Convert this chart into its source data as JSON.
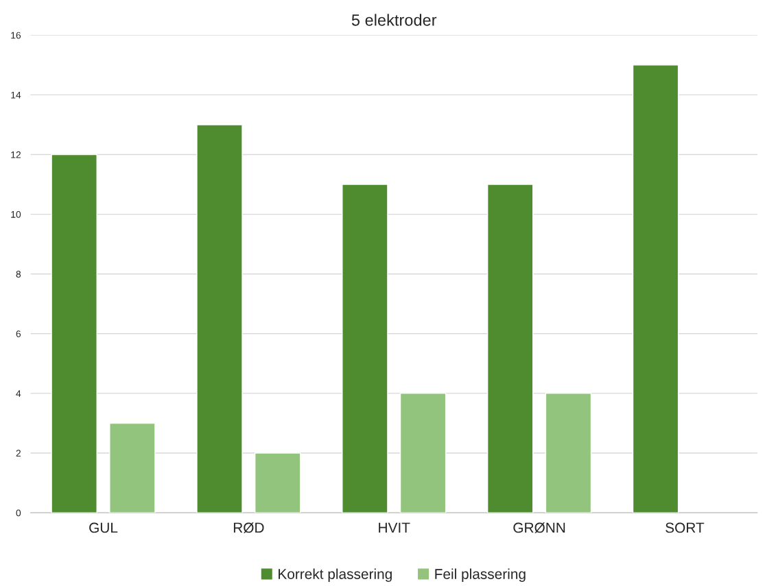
{
  "chart_data": {
    "type": "bar",
    "title": "5 elektroder",
    "categories": [
      "GUL",
      "RØD",
      "HVIT",
      "GRØNN",
      "SORT"
    ],
    "series": [
      {
        "name": "Korrekt plassering",
        "color": "#4f8c2f",
        "values": [
          12,
          13,
          11,
          11,
          15
        ]
      },
      {
        "name": "Feil plassering",
        "color": "#93c47d",
        "values": [
          3,
          2,
          4,
          4,
          null
        ]
      }
    ],
    "ylim": [
      0,
      16
    ],
    "yticks": [
      0,
      2,
      4,
      6,
      8,
      10,
      12,
      14,
      16
    ],
    "grid": "y",
    "legend": "bottom"
  }
}
